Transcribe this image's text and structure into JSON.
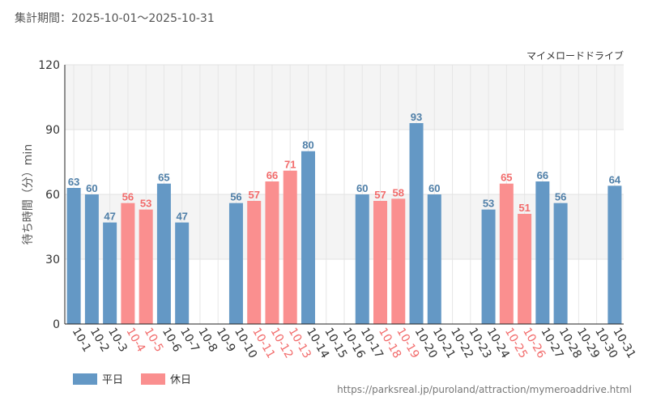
{
  "header": {
    "period": "集計期間：2025-10-01～2025-10-31"
  },
  "colors": {
    "weekday": "#6498c5",
    "holiday": "#fa8f8f",
    "weekdayText": "#4f7fa8",
    "holidayText": "#f26b6b"
  },
  "legend": {
    "weekday": "平日",
    "holiday": "休日"
  },
  "footer": {
    "source": "https://parksreal.jp/puroland/attraction/mymeroaddrive.html"
  },
  "chart_data": {
    "type": "bar",
    "title": "マイメロードドライブ",
    "ylabel": "待ち時間（分）min",
    "xlabel": "",
    "ylim": [
      0,
      120
    ],
    "yticks": [
      0,
      30,
      60,
      90,
      120
    ],
    "categories": [
      "10-1",
      "10-2",
      "10-3",
      "10-4",
      "10-5",
      "10-6",
      "10-7",
      "10-8",
      "10-9",
      "10-10",
      "10-11",
      "10-12",
      "10-13",
      "10-14",
      "10-15",
      "10-16",
      "10-17",
      "10-18",
      "10-19",
      "10-20",
      "10-21",
      "10-22",
      "10-23",
      "10-24",
      "10-25",
      "10-26",
      "10-27",
      "10-28",
      "10-29",
      "10-30",
      "10-31"
    ],
    "values": [
      63,
      60,
      47,
      56,
      53,
      65,
      47,
      null,
      null,
      56,
      57,
      66,
      71,
      80,
      null,
      null,
      60,
      57,
      58,
      93,
      60,
      null,
      null,
      53,
      65,
      51,
      66,
      56,
      null,
      null,
      64
    ],
    "day_type": [
      "weekday",
      "weekday",
      "weekday",
      "holiday",
      "holiday",
      "weekday",
      "weekday",
      "weekday",
      "weekday",
      "weekday",
      "holiday",
      "holiday",
      "holiday",
      "weekday",
      "weekday",
      "weekday",
      "weekday",
      "holiday",
      "holiday",
      "weekday",
      "weekday",
      "weekday",
      "weekday",
      "weekday",
      "holiday",
      "holiday",
      "weekday",
      "weekday",
      "weekday",
      "weekday",
      "weekday"
    ],
    "series": [
      {
        "name": "平日",
        "key": "weekday"
      },
      {
        "name": "休日",
        "key": "holiday"
      }
    ]
  }
}
